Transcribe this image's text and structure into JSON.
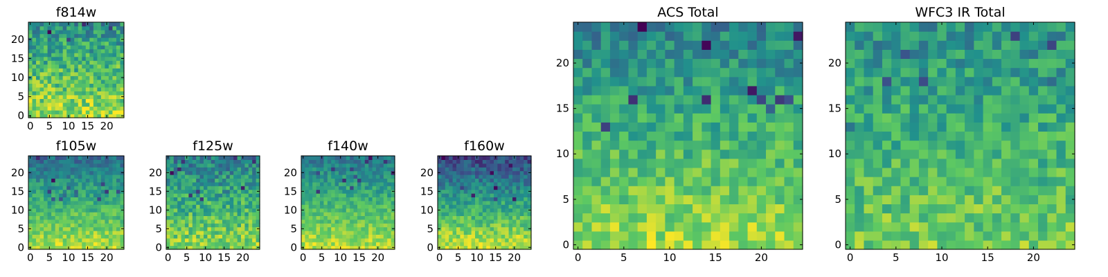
{
  "figure": {
    "colormap": "viridis",
    "colormap_stops": [
      "#440154",
      "#3b528b",
      "#21918c",
      "#5ec962",
      "#fde725"
    ]
  },
  "chart_data": [
    {
      "type": "heatmap",
      "title": "f814w",
      "grid_size": [
        25,
        25
      ],
      "xlim": [
        -0.5,
        24.5
      ],
      "ylim": [
        -0.5,
        24.5
      ],
      "xticks": [
        0,
        5,
        10,
        15,
        20
      ],
      "yticks": [
        0,
        5,
        10,
        15,
        20
      ],
      "xtick_labels": [
        "0",
        "5",
        "10",
        "15",
        "20"
      ],
      "ytick_labels": [
        "0",
        "5",
        "10",
        "15",
        "20"
      ],
      "trend": {
        "top": 0.5,
        "bottom": 0.86,
        "noise": 0.2,
        "seed": 11
      }
    },
    {
      "type": "heatmap",
      "title": "f105w",
      "grid_size": [
        25,
        25
      ],
      "xlim": [
        -0.5,
        24.5
      ],
      "ylim": [
        -0.5,
        24.5
      ],
      "xticks": [
        0,
        5,
        10,
        15,
        20
      ],
      "yticks": [
        0,
        5,
        10,
        15,
        20
      ],
      "xtick_labels": [
        "0",
        "5",
        "10",
        "15",
        "20"
      ],
      "ytick_labels": [
        "0",
        "5",
        "10",
        "15",
        "20"
      ],
      "trend": {
        "top": 0.36,
        "bottom": 0.9,
        "noise": 0.13,
        "seed": 23
      }
    },
    {
      "type": "heatmap",
      "title": "f125w",
      "grid_size": [
        25,
        25
      ],
      "xlim": [
        -0.5,
        24.5
      ],
      "ylim": [
        -0.5,
        24.5
      ],
      "xticks": [
        0,
        5,
        10,
        15,
        20
      ],
      "yticks": [
        0,
        5,
        10,
        15,
        20
      ],
      "xtick_labels": [
        "0",
        "5",
        "10",
        "15",
        "20"
      ],
      "ytick_labels": [
        "0",
        "5",
        "10",
        "15",
        "20"
      ],
      "trend": {
        "top": 0.42,
        "bottom": 0.84,
        "noise": 0.18,
        "seed": 37
      }
    },
    {
      "type": "heatmap",
      "title": "f140w",
      "grid_size": [
        25,
        25
      ],
      "xlim": [
        -0.5,
        24.5
      ],
      "ylim": [
        -0.5,
        24.5
      ],
      "xticks": [
        0,
        5,
        10,
        15,
        20
      ],
      "yticks": [
        0,
        5,
        10,
        15,
        20
      ],
      "xtick_labels": [
        "0",
        "5",
        "10",
        "15",
        "20"
      ],
      "ytick_labels": [
        "0",
        "5",
        "10",
        "15",
        "20"
      ],
      "trend": {
        "top": 0.4,
        "bottom": 0.9,
        "noise": 0.12,
        "seed": 41
      }
    },
    {
      "type": "heatmap",
      "title": "f160w",
      "grid_size": [
        25,
        25
      ],
      "xlim": [
        -0.5,
        24.5
      ],
      "ylim": [
        -0.5,
        24.5
      ],
      "xticks": [
        0,
        5,
        10,
        15,
        20
      ],
      "yticks": [
        0,
        5,
        10,
        15,
        20
      ],
      "xtick_labels": [
        "0",
        "5",
        "10",
        "15",
        "20"
      ],
      "ytick_labels": [
        "0",
        "5",
        "10",
        "15",
        "20"
      ],
      "trend": {
        "top": 0.22,
        "bottom": 0.93,
        "noise": 0.14,
        "seed": 53
      }
    },
    {
      "type": "heatmap",
      "title": "ACS Total",
      "grid_size": [
        25,
        25
      ],
      "xlim": [
        -0.5,
        24.5
      ],
      "ylim": [
        -0.5,
        24.5
      ],
      "xticks": [
        0,
        5,
        10,
        15,
        20
      ],
      "yticks": [
        0,
        5,
        10,
        15,
        20
      ],
      "xtick_labels": [
        "0",
        "5",
        "10",
        "15",
        "20"
      ],
      "ytick_labels": [
        "0",
        "5",
        "10",
        "15",
        "20"
      ],
      "trend": {
        "top": 0.45,
        "bottom": 0.86,
        "noise": 0.15,
        "seed": 67
      }
    },
    {
      "type": "heatmap",
      "title": "WFC3 IR Total",
      "grid_size": [
        25,
        25
      ],
      "xlim": [
        -0.5,
        24.5
      ],
      "ylim": [
        -0.5,
        24.5
      ],
      "xticks": [
        0,
        5,
        10,
        15,
        20
      ],
      "yticks": [
        0,
        5,
        10,
        15,
        20
      ],
      "xtick_labels": [
        "0",
        "5",
        "10",
        "15",
        "20"
      ],
      "ytick_labels": [
        "0",
        "5",
        "10",
        "15",
        "20"
      ],
      "trend": {
        "top": 0.5,
        "bottom": 0.78,
        "noise": 0.16,
        "seed": 79
      }
    }
  ]
}
